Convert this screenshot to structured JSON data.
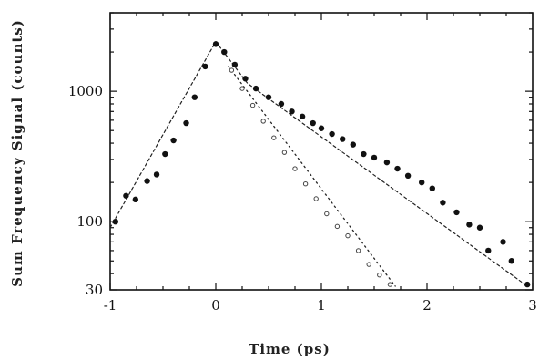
{
  "chart_data": {
    "type": "scatter",
    "xlabel": "Time (ps)",
    "ylabel": "Sum Frequency Signal (counts)",
    "xlim": [
      -1,
      3
    ],
    "ylim": [
      30,
      4000
    ],
    "yscale": "log",
    "x_ticks": [
      {
        "value": -1,
        "label": "-1"
      },
      {
        "value": 0,
        "label": "0"
      },
      {
        "value": 1,
        "label": "1"
      },
      {
        "value": 2,
        "label": "2"
      },
      {
        "value": 3,
        "label": "3"
      }
    ],
    "y_ticks": [
      {
        "value": 30,
        "label": "30"
      },
      {
        "value": 100,
        "label": "100"
      },
      {
        "value": 1000,
        "label": "1000"
      }
    ],
    "grid": false,
    "legend": "none",
    "series": [
      {
        "marker": "filled-circle",
        "color": "#111111",
        "points": [
          [
            -0.95,
            100
          ],
          [
            -0.85,
            158
          ],
          [
            -0.76,
            148
          ],
          [
            -0.65,
            205
          ],
          [
            -0.56,
            230
          ],
          [
            -0.48,
            330
          ],
          [
            -0.4,
            420
          ],
          [
            -0.28,
            570
          ],
          [
            -0.2,
            900
          ],
          [
            -0.1,
            1550
          ],
          [
            0.0,
            2300
          ],
          [
            0.08,
            2000
          ],
          [
            0.18,
            1600
          ],
          [
            0.28,
            1250
          ],
          [
            0.38,
            1050
          ],
          [
            0.5,
            900
          ],
          [
            0.62,
            800
          ],
          [
            0.72,
            700
          ],
          [
            0.82,
            640
          ],
          [
            0.92,
            570
          ],
          [
            1.0,
            520
          ],
          [
            1.1,
            470
          ],
          [
            1.2,
            430
          ],
          [
            1.3,
            390
          ],
          [
            1.4,
            330
          ],
          [
            1.5,
            310
          ],
          [
            1.62,
            285
          ],
          [
            1.72,
            255
          ],
          [
            1.82,
            225
          ],
          [
            1.95,
            200
          ],
          [
            2.05,
            180
          ],
          [
            2.15,
            140
          ],
          [
            2.28,
            118
          ],
          [
            2.4,
            95
          ],
          [
            2.5,
            90
          ],
          [
            2.58,
            60
          ],
          [
            2.72,
            70
          ],
          [
            2.8,
            50
          ],
          [
            2.95,
            33
          ]
        ]
      },
      {
        "marker": "open-circle",
        "color": "#444444",
        "points": [
          [
            0.15,
            1450
          ],
          [
            0.25,
            1050
          ],
          [
            0.35,
            780
          ],
          [
            0.45,
            590
          ],
          [
            0.55,
            440
          ],
          [
            0.65,
            340
          ],
          [
            0.75,
            255
          ],
          [
            0.85,
            195
          ],
          [
            0.95,
            150
          ],
          [
            1.05,
            115
          ],
          [
            1.15,
            92
          ],
          [
            1.25,
            78
          ],
          [
            1.35,
            60
          ],
          [
            1.45,
            47
          ],
          [
            1.55,
            39
          ],
          [
            1.65,
            33
          ]
        ]
      }
    ],
    "fit_lines": [
      {
        "style": "dashed",
        "points": [
          [
            -1,
            90
          ],
          [
            0,
            2400
          ]
        ]
      },
      {
        "style": "dashed",
        "points": [
          [
            0,
            2400
          ],
          [
            0.3,
            1150
          ],
          [
            2.95,
            32
          ]
        ]
      },
      {
        "style": "dotted",
        "points": [
          [
            0.12,
            1550
          ],
          [
            1.7,
            32
          ]
        ]
      }
    ]
  }
}
